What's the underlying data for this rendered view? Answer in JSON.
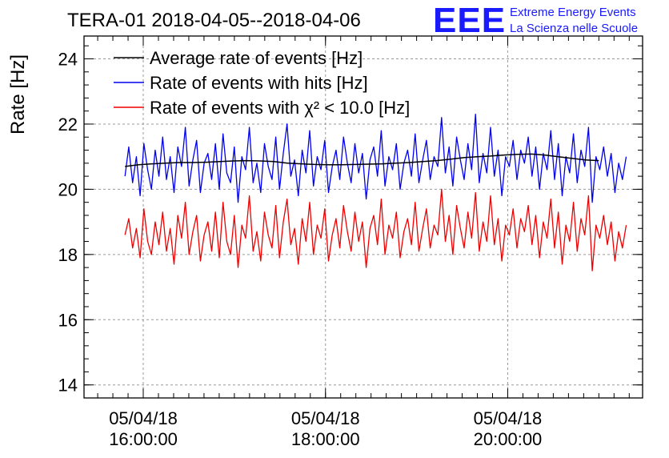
{
  "title": "TERA-01 2018-04-05--2018-04-06",
  "logo": {
    "mark": "EEE",
    "line1": "Extreme Energy Events",
    "line2": "La Scienza nelle Scuole"
  },
  "chart_data": {
    "type": "line",
    "ylabel": "Rate [Hz]",
    "ylim": [
      13.6,
      24.7
    ],
    "yticks": [
      14,
      16,
      18,
      20,
      22,
      24
    ],
    "ytick_labels": [
      "14",
      "16",
      "18",
      "20",
      "22",
      "24"
    ],
    "xlim_hours": [
      15.35,
      21.48
    ],
    "xticks_hours": [
      16,
      18,
      20
    ],
    "xtick_labels": [
      {
        "date": "05/04/18",
        "time": "16:00:00"
      },
      {
        "date": "05/04/18",
        "time": "18:00:00"
      },
      {
        "date": "05/04/18",
        "time": "20:00:00"
      }
    ],
    "x_start_hours": 15.8,
    "x_end_hours": 21.3,
    "grid": true,
    "legend_position": "top-left",
    "series": [
      {
        "name": "Average rate of events [Hz]",
        "color": "#000000",
        "x_start_hours": 15.8,
        "x_end_hours": 21.0,
        "values": [
          20.7,
          20.75,
          20.78,
          20.8,
          20.82,
          20.82,
          20.83,
          20.85,
          20.87,
          20.88,
          20.87,
          20.85,
          20.8,
          20.78,
          20.76,
          20.75,
          20.75,
          20.76,
          20.77,
          20.78,
          20.8,
          20.82,
          20.85,
          20.88,
          20.92,
          20.97,
          21.0,
          21.02,
          21.05,
          21.07,
          21.08,
          21.05,
          21.0,
          20.95,
          20.9,
          20.88
        ]
      },
      {
        "name": "Rate of events with hits [Hz]",
        "color": "#0000ee",
        "x_start_hours": 15.8,
        "x_end_hours": 21.3,
        "values": [
          20.4,
          21.3,
          20.2,
          21.0,
          19.8,
          21.4,
          20.6,
          20.0,
          21.2,
          20.4,
          21.6,
          20.3,
          21.0,
          19.9,
          21.3,
          20.7,
          21.9,
          20.1,
          20.9,
          21.5,
          19.9,
          20.8,
          21.1,
          20.3,
          21.4,
          20.0,
          21.7,
          20.5,
          20.2,
          21.3,
          19.6,
          21.0,
          20.6,
          21.9,
          20.2,
          20.8,
          19.9,
          21.4,
          20.7,
          20.3,
          21.6,
          20.0,
          21.1,
          22.0,
          20.4,
          20.9,
          19.8,
          21.2,
          20.5,
          21.8,
          20.1,
          21.0,
          20.6,
          21.5,
          19.9,
          20.7,
          21.2,
          20.3,
          21.6,
          20.8,
          20.2,
          21.4,
          20.5,
          21.1,
          19.7,
          20.9,
          21.3,
          20.4,
          21.8,
          20.1,
          21.0,
          20.6,
          21.4,
          20.0,
          20.8,
          21.2,
          20.4,
          21.7,
          20.2,
          20.9,
          21.5,
          20.3,
          21.0,
          20.7,
          22.2,
          20.5,
          21.3,
          20.1,
          21.6,
          20.9,
          20.3,
          21.4,
          20.6,
          22.3,
          20.2,
          21.1,
          20.5,
          21.9,
          20.4,
          21.2,
          19.8,
          21.0,
          20.7,
          21.5,
          20.3,
          21.2,
          20.8,
          21.6,
          20.4,
          21.3,
          20.0,
          21.1,
          20.6,
          21.8,
          20.3,
          21.4,
          19.8,
          21.0,
          20.5,
          21.7,
          20.2,
          21.2,
          20.7,
          21.9,
          19.6,
          21.0,
          20.6,
          21.3,
          20.4,
          21.1,
          19.9,
          20.8,
          20.3,
          21.0
        ]
      },
      {
        "name": "Rate of events with χ² < 10.0 [Hz]",
        "color": "#ee0000",
        "x_start_hours": 15.8,
        "x_end_hours": 21.3,
        "values": [
          18.6,
          19.1,
          18.2,
          18.8,
          17.9,
          19.4,
          18.4,
          18.0,
          19.0,
          18.3,
          19.3,
          18.1,
          18.8,
          17.7,
          19.2,
          18.5,
          19.6,
          18.0,
          18.7,
          19.2,
          17.8,
          18.6,
          19.0,
          18.1,
          19.3,
          17.9,
          19.6,
          18.4,
          18.0,
          19.2,
          17.6,
          18.9,
          18.5,
          19.8,
          18.1,
          18.7,
          17.8,
          19.3,
          18.6,
          18.2,
          19.5,
          17.9,
          19.0,
          19.7,
          18.3,
          18.8,
          17.7,
          19.1,
          18.4,
          19.6,
          18.0,
          18.9,
          18.5,
          19.4,
          17.8,
          18.6,
          19.1,
          18.2,
          19.5,
          18.7,
          18.1,
          19.3,
          18.4,
          19.0,
          17.6,
          18.8,
          19.2,
          18.3,
          19.7,
          18.0,
          18.9,
          18.5,
          19.3,
          17.9,
          18.7,
          19.1,
          18.3,
          19.6,
          18.1,
          18.8,
          19.4,
          18.2,
          18.9,
          18.6,
          20.0,
          18.4,
          19.2,
          18.0,
          19.5,
          18.8,
          18.2,
          19.3,
          18.5,
          19.9,
          18.1,
          19.0,
          18.4,
          19.8,
          18.3,
          19.1,
          17.8,
          18.9,
          18.6,
          19.4,
          18.2,
          19.1,
          18.7,
          19.5,
          18.3,
          19.2,
          17.9,
          19.0,
          18.5,
          19.7,
          18.2,
          19.3,
          17.7,
          18.9,
          18.4,
          19.6,
          18.1,
          19.1,
          18.6,
          19.8,
          17.5,
          18.9,
          18.5,
          19.2,
          18.3,
          19.0,
          17.8,
          18.7,
          18.2,
          18.9
        ]
      }
    ]
  }
}
